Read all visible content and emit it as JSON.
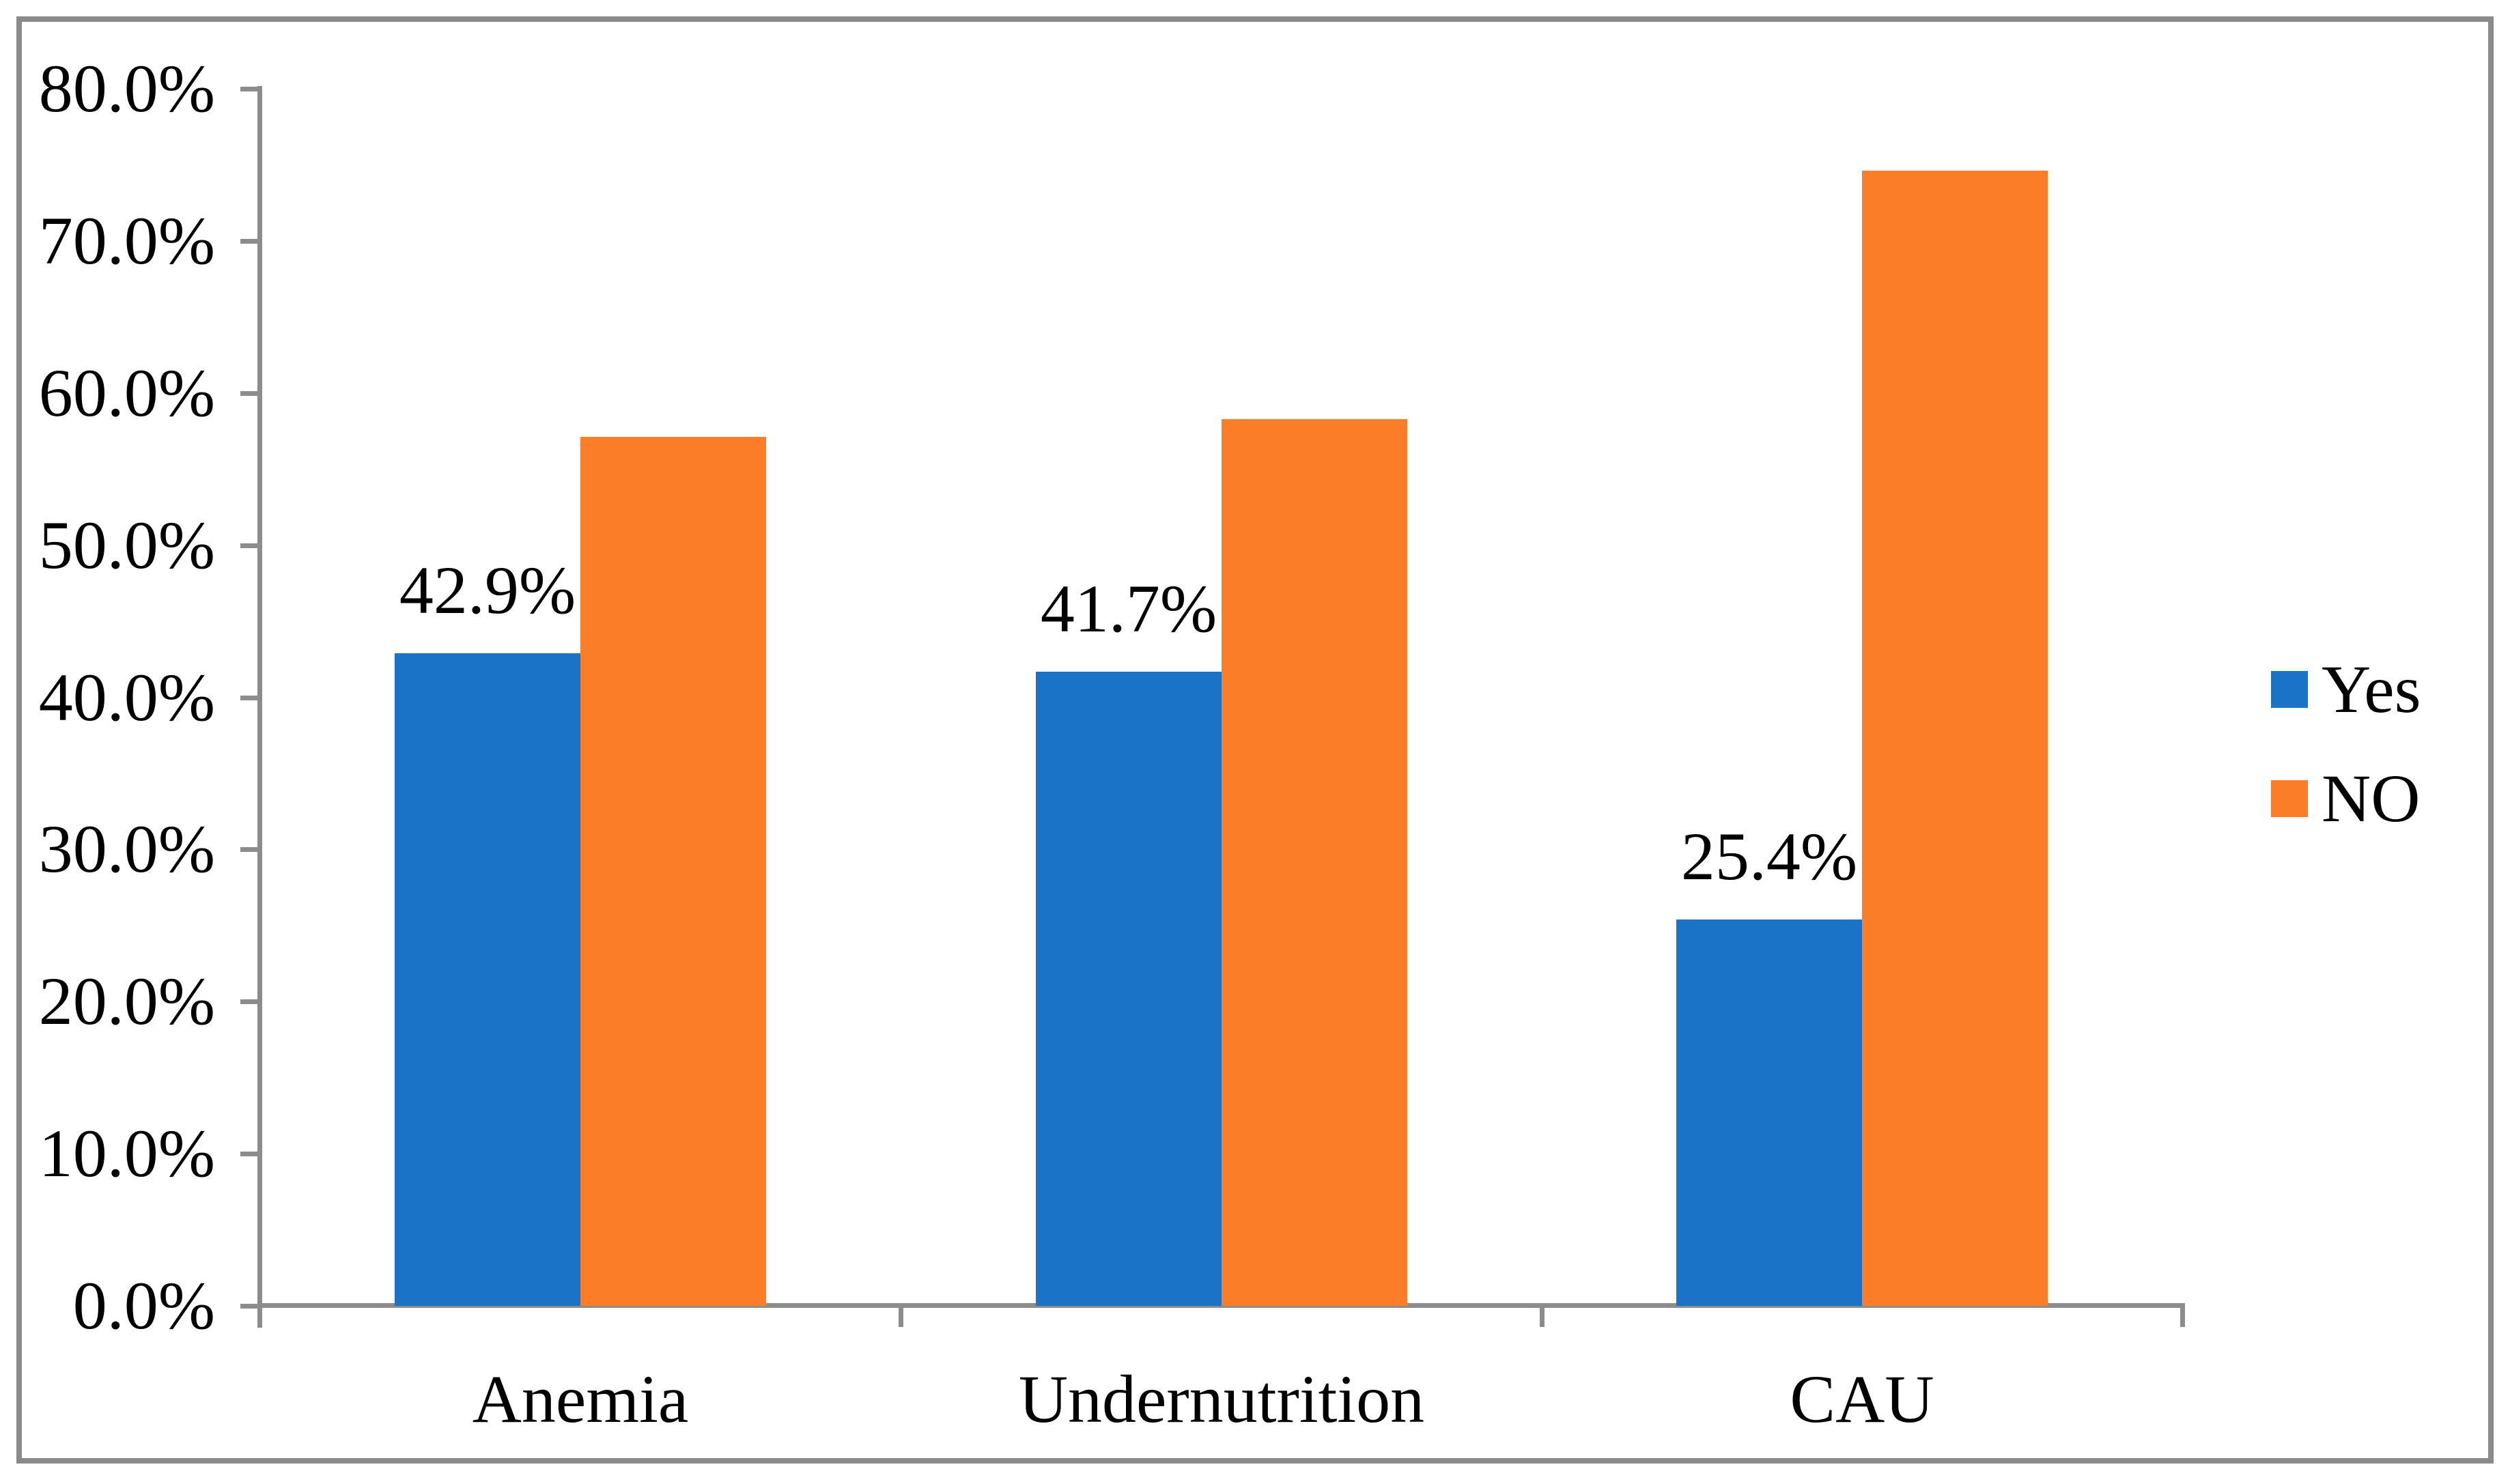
{
  "chart_data": {
    "type": "bar",
    "title": "",
    "xlabel": "",
    "ylabel": "",
    "categories": [
      "Anemia",
      "Undernutrition",
      "CAU"
    ],
    "series": [
      {
        "name": "Yes",
        "color": "#1B73C8",
        "values": [
          42.9,
          41.7,
          25.4
        ],
        "data_labels": [
          "42.9%",
          "41.7%",
          "25.4%"
        ]
      },
      {
        "name": "NO",
        "color": "#FC7D28",
        "values": [
          57.1,
          58.3,
          74.6
        ],
        "data_labels": [
          "",
          "",
          ""
        ]
      }
    ],
    "ylim": [
      0,
      80
    ],
    "y_ticks": [
      0,
      10,
      20,
      30,
      40,
      50,
      60,
      70,
      80
    ],
    "y_tick_labels": [
      "0.0%",
      "10.0%",
      "20.0%",
      "30.0%",
      "40.0%",
      "50.0%",
      "60.0%",
      "70.0%",
      "80.0%"
    ],
    "grid": false,
    "legend_position": "center-right"
  },
  "styles": {
    "axis_color": "#8C8C8C",
    "border_color": "#8A8A8A",
    "text_color": "#000000",
    "background_color": "#FFFFFF"
  }
}
